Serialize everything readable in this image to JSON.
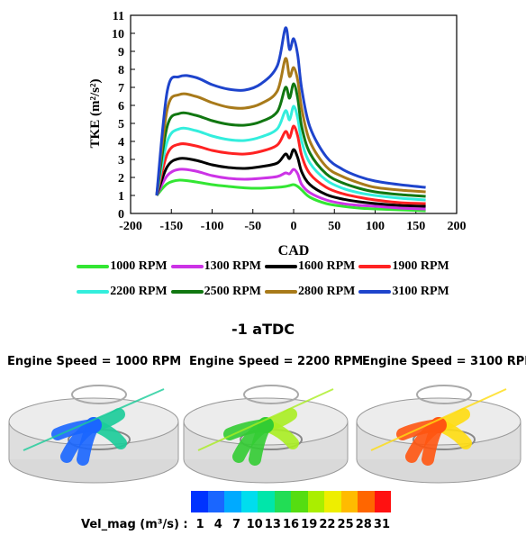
{
  "chart_data": {
    "type": "line",
    "title": "",
    "xlabel": "CAD",
    "ylabel": "TKE (m²/s²)",
    "xlim": [
      -200,
      200
    ],
    "ylim": [
      0,
      11
    ],
    "xticks": [
      "-200",
      "-150",
      "-100",
      "-50",
      "0",
      "50",
      "100",
      "150",
      "200"
    ],
    "yticks": [
      "0",
      "1",
      "2",
      "3",
      "4",
      "5",
      "6",
      "7",
      "8",
      "9",
      "10",
      "11"
    ],
    "legend_position": "bottom",
    "series": [
      {
        "name": "1000 RPM",
        "color": "#33e633",
        "x": [
          -168,
          -155,
          -140,
          -120,
          -100,
          -80,
          -60,
          -40,
          -20,
          -10,
          -5,
          0,
          5,
          10,
          20,
          40,
          60,
          80,
          100,
          130,
          162
        ],
        "y": [
          1.0,
          1.65,
          1.85,
          1.75,
          1.6,
          1.5,
          1.42,
          1.4,
          1.45,
          1.5,
          1.55,
          1.6,
          1.5,
          1.3,
          0.9,
          0.55,
          0.4,
          0.3,
          0.25,
          0.2,
          0.15
        ]
      },
      {
        "name": "1300 RPM",
        "color": "#cc33e6",
        "x": [
          -168,
          -155,
          -140,
          -120,
          -100,
          -80,
          -60,
          -40,
          -20,
          -10,
          -5,
          0,
          5,
          10,
          20,
          40,
          60,
          80,
          100,
          130,
          162
        ],
        "y": [
          1.0,
          2.1,
          2.45,
          2.35,
          2.1,
          1.95,
          1.9,
          1.95,
          2.05,
          2.25,
          2.2,
          2.45,
          2.2,
          1.6,
          1.15,
          0.75,
          0.55,
          0.45,
          0.4,
          0.3,
          0.25
        ]
      },
      {
        "name": "1600 RPM",
        "color": "#000000",
        "x": [
          -168,
          -155,
          -140,
          -120,
          -100,
          -80,
          -60,
          -40,
          -20,
          -10,
          -5,
          0,
          5,
          10,
          20,
          40,
          60,
          80,
          100,
          130,
          162
        ],
        "y": [
          1.0,
          2.6,
          3.05,
          2.95,
          2.7,
          2.55,
          2.5,
          2.6,
          2.8,
          3.3,
          3.05,
          3.55,
          3.1,
          2.3,
          1.6,
          1.05,
          0.8,
          0.65,
          0.55,
          0.45,
          0.4
        ]
      },
      {
        "name": "1900 RPM",
        "color": "#ff2222",
        "x": [
          -168,
          -155,
          -140,
          -120,
          -100,
          -80,
          -60,
          -40,
          -20,
          -10,
          -5,
          0,
          5,
          10,
          20,
          40,
          60,
          80,
          100,
          130,
          162
        ],
        "y": [
          1.0,
          3.3,
          3.85,
          3.75,
          3.5,
          3.35,
          3.3,
          3.45,
          3.8,
          4.55,
          4.2,
          4.85,
          4.3,
          3.2,
          2.2,
          1.45,
          1.1,
          0.9,
          0.75,
          0.6,
          0.55
        ]
      },
      {
        "name": "2200 RPM",
        "color": "#33eedd",
        "x": [
          -168,
          -155,
          -140,
          -120,
          -100,
          -80,
          -60,
          -40,
          -20,
          -10,
          -5,
          0,
          5,
          10,
          20,
          40,
          60,
          80,
          100,
          130,
          162
        ],
        "y": [
          1.0,
          4.0,
          4.7,
          4.6,
          4.3,
          4.1,
          4.05,
          4.25,
          4.7,
          5.7,
          5.2,
          5.95,
          5.3,
          4.0,
          2.8,
          1.85,
          1.4,
          1.15,
          1.0,
          0.85,
          0.75
        ]
      },
      {
        "name": "2500 RPM",
        "color": "#117711",
        "x": [
          -168,
          -155,
          -140,
          -120,
          -100,
          -80,
          -60,
          -40,
          -20,
          -10,
          -5,
          0,
          5,
          10,
          20,
          40,
          60,
          80,
          100,
          130,
          162
        ],
        "y": [
          1.0,
          4.85,
          5.55,
          5.45,
          5.15,
          4.95,
          4.9,
          5.1,
          5.65,
          7.0,
          6.4,
          7.2,
          6.4,
          4.8,
          3.35,
          2.2,
          1.7,
          1.4,
          1.2,
          1.05,
          0.95
        ]
      },
      {
        "name": "2800 RPM",
        "color": "#a87a1a",
        "x": [
          -168,
          -155,
          -140,
          -120,
          -100,
          -80,
          -60,
          -40,
          -20,
          -10,
          -5,
          0,
          5,
          10,
          20,
          40,
          60,
          80,
          100,
          130,
          162
        ],
        "y": [
          1.0,
          5.8,
          6.6,
          6.5,
          6.15,
          5.9,
          5.85,
          6.1,
          6.8,
          8.6,
          7.6,
          8.1,
          7.4,
          5.8,
          4.0,
          2.6,
          2.05,
          1.7,
          1.45,
          1.3,
          1.2
        ]
      },
      {
        "name": "3100 RPM",
        "color": "#1e44cc",
        "x": [
          -168,
          -155,
          -140,
          -120,
          -100,
          -80,
          -60,
          -40,
          -20,
          -10,
          -5,
          0,
          5,
          10,
          20,
          40,
          60,
          80,
          100,
          130,
          162
        ],
        "y": [
          1.0,
          6.8,
          7.6,
          7.55,
          7.15,
          6.9,
          6.85,
          7.2,
          8.2,
          10.3,
          9.1,
          9.7,
          8.8,
          6.9,
          4.8,
          3.15,
          2.45,
          2.05,
          1.8,
          1.6,
          1.45
        ]
      }
    ]
  },
  "cfd": {
    "title": "-1 aTDC",
    "panels": [
      {
        "label": "Engine Speed = 1000 RPM",
        "dominant": "#1a66ff",
        "accent": "#1acc99"
      },
      {
        "label": "Engine Speed = 2200 RPM",
        "dominant": "#33cc33",
        "accent": "#aaee22"
      },
      {
        "label": "Engine Speed = 3100 RPM",
        "dominant": "#ff5511",
        "accent": "#ffdd11"
      }
    ],
    "colorbar_label": "Vel_mag (m³/s) :",
    "colorbar_ticks": [
      "1",
      "4",
      "7",
      "10",
      "13",
      "16",
      "19",
      "22",
      "25",
      "28",
      "31"
    ],
    "colorbar_colors": [
      "#0033ff",
      "#1a66ff",
      "#00aaff",
      "#00ddee",
      "#00e6aa",
      "#22dd55",
      "#55dd11",
      "#aaee00",
      "#eeee00",
      "#ffbb00",
      "#ff6600",
      "#ff1111"
    ]
  }
}
